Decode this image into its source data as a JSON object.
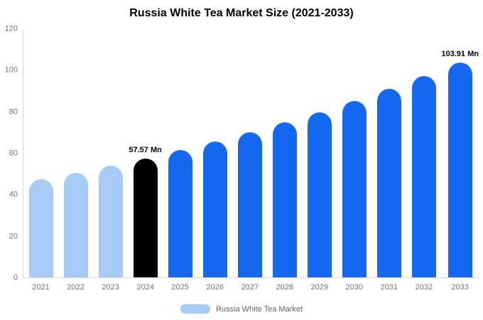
{
  "title": "Russia White Tea Market Size (2021-2033)",
  "chart_data": {
    "type": "bar",
    "title": "Russia White Tea Market Size (2021-2033)",
    "categories": [
      "2021",
      "2022",
      "2023",
      "2024",
      "2025",
      "2026",
      "2027",
      "2028",
      "2029",
      "2030",
      "2031",
      "2032",
      "2033"
    ],
    "values": [
      47.3,
      50.5,
      53.9,
      57.57,
      61.5,
      65.6,
      70.1,
      74.8,
      79.9,
      85.3,
      91.1,
      97.3,
      103.91
    ],
    "colors": [
      "#a6cbf4",
      "#a6cbf4",
      "#a6cbf4",
      "#000000",
      "#1568f0",
      "#1568f0",
      "#1568f0",
      "#1568f0",
      "#1568f0",
      "#1568f0",
      "#1568f0",
      "#1568f0",
      "#1568f0"
    ],
    "annotations": [
      {
        "index": 3,
        "text": "57.57 Mn"
      },
      {
        "index": 12,
        "text": "103.91 Mn"
      }
    ],
    "xlabel": "",
    "ylabel": "",
    "ylim": [
      0,
      120
    ],
    "yticks": [
      0,
      20,
      40,
      60,
      80,
      100,
      120
    ],
    "grid": false,
    "legend_position": "bottom"
  },
  "legend": {
    "label": "Russia White Tea Market",
    "swatch_color": "#a6cbf4"
  }
}
